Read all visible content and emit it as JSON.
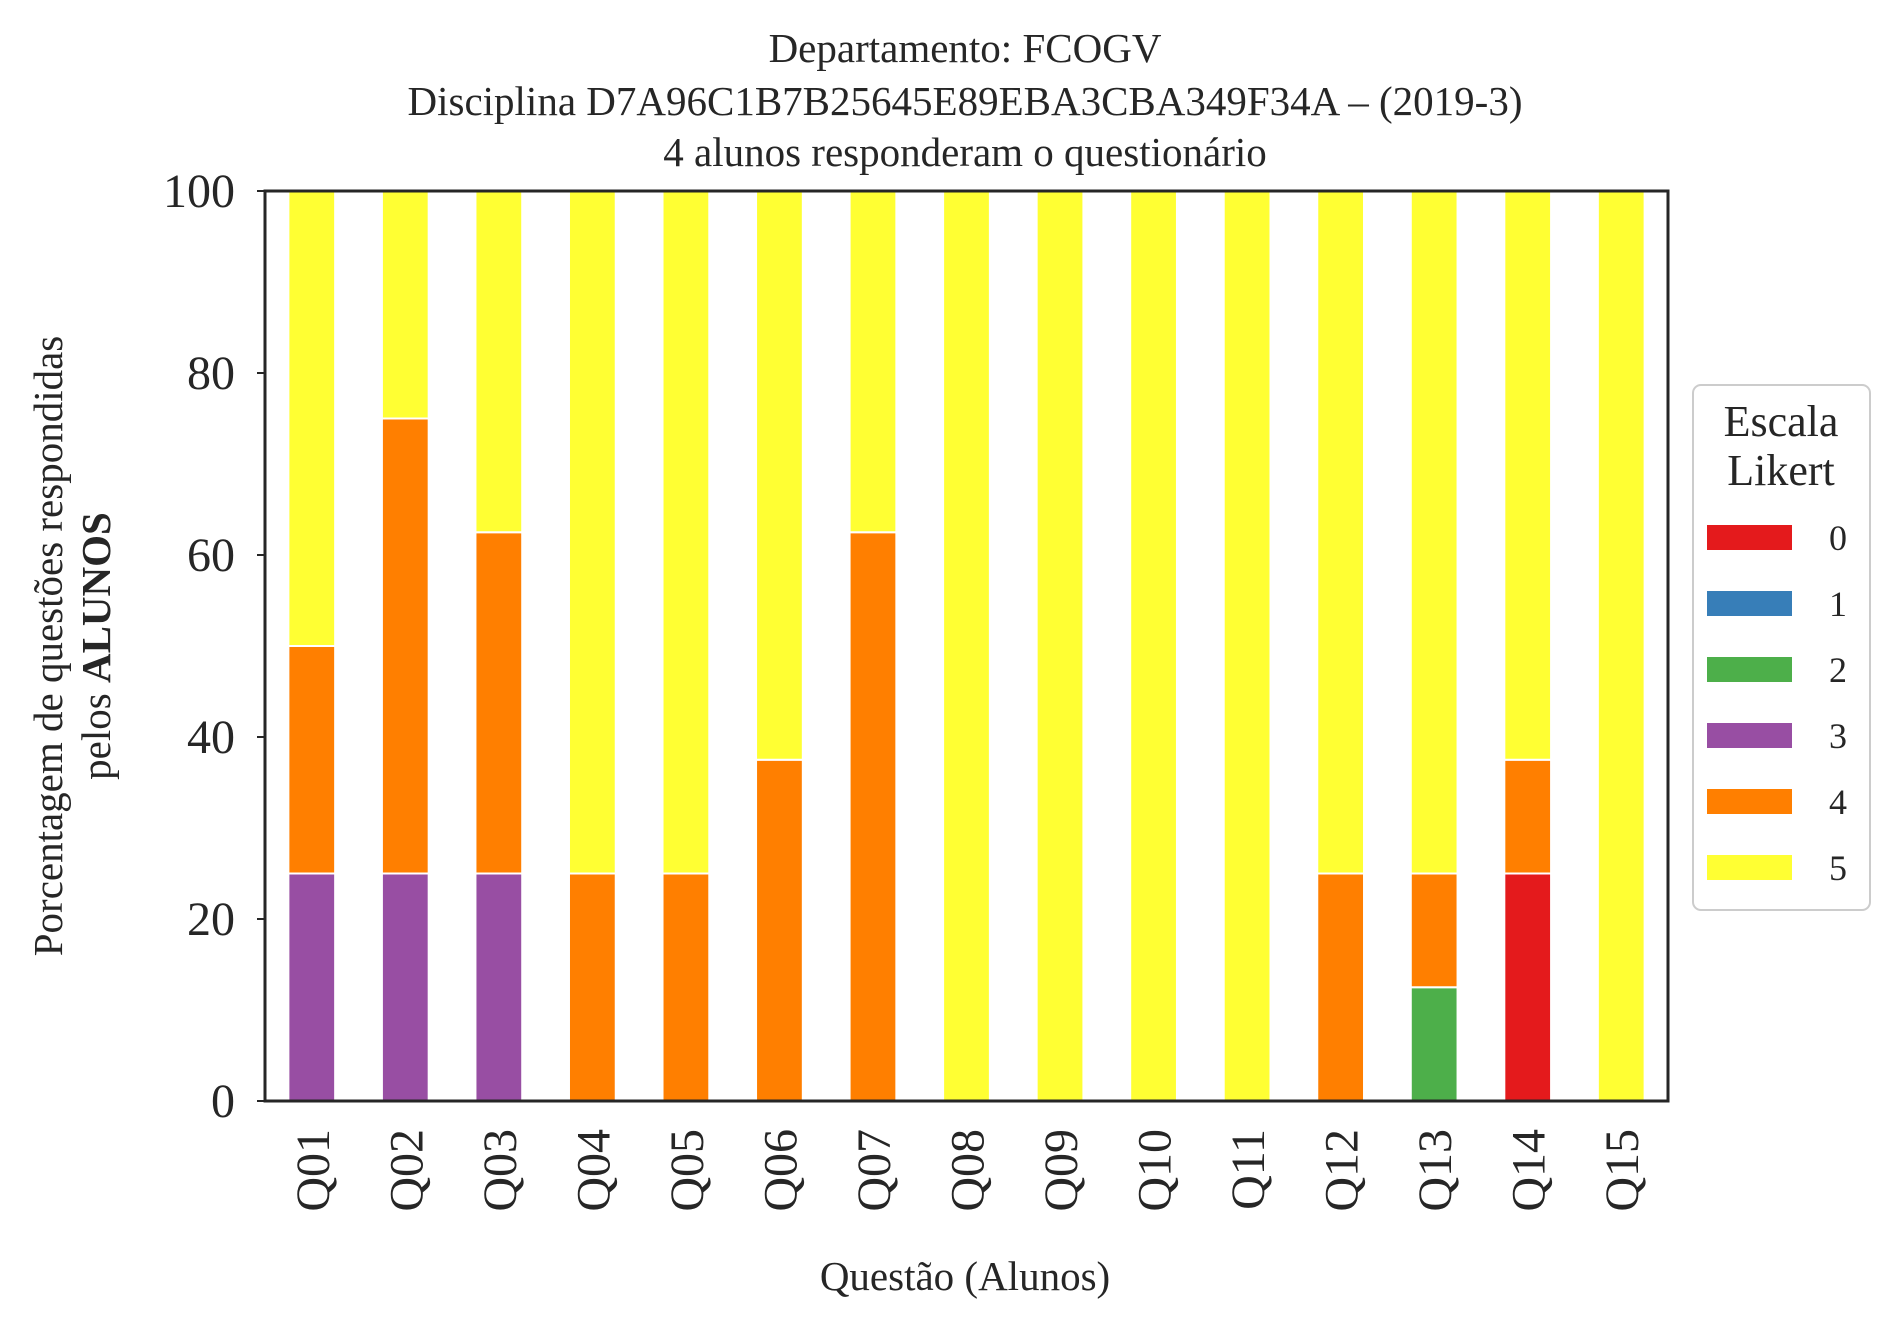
{
  "chart_data": {
    "type": "bar",
    "stacked": true,
    "title_lines": [
      "Departamento: FCOGV",
      "Disciplina D7A96C1B7B25645E89EBA3CBA349F34A – (2019-3)",
      "4 alunos responderam o questionário"
    ],
    "xlabel": "Questão (Alunos)",
    "ylabel_line1": "Porcentagem de questões respondidas",
    "ylabel_line2_prefix": "pelos ",
    "ylabel_line2_bold": "ALUNOS",
    "ylim": [
      0,
      100
    ],
    "yticks": [
      "0",
      "20",
      "40",
      "60",
      "80",
      "100"
    ],
    "categories": [
      "Q01",
      "Q02",
      "Q03",
      "Q04",
      "Q05",
      "Q06",
      "Q07",
      "Q08",
      "Q09",
      "Q10",
      "Q11",
      "Q12",
      "Q13",
      "Q14",
      "Q15"
    ],
    "series": [
      {
        "name": "0",
        "color": "#e41a1c",
        "values": [
          0,
          0,
          0,
          0,
          0,
          0,
          0,
          0,
          0,
          0,
          0,
          0,
          0,
          25,
          0
        ]
      },
      {
        "name": "1",
        "color": "#377eb8",
        "values": [
          0,
          0,
          0,
          0,
          0,
          0,
          0,
          0,
          0,
          0,
          0,
          0,
          0,
          0,
          0
        ]
      },
      {
        "name": "2",
        "color": "#4daf4a",
        "values": [
          0,
          0,
          0,
          0,
          0,
          0,
          0,
          0,
          0,
          0,
          0,
          0,
          12.5,
          0,
          0
        ]
      },
      {
        "name": "3",
        "color": "#984ea3",
        "values": [
          25,
          25,
          25,
          0,
          0,
          0,
          0,
          0,
          0,
          0,
          0,
          0,
          0,
          0,
          0
        ]
      },
      {
        "name": "4",
        "color": "#ff7f00",
        "values": [
          25,
          50,
          37.5,
          25,
          25,
          37.5,
          62.5,
          0,
          0,
          0,
          0,
          25,
          12.5,
          12.5,
          0
        ]
      },
      {
        "name": "5",
        "color": "#ffff33",
        "values": [
          50,
          25,
          37.5,
          75,
          75,
          62.5,
          37.5,
          100,
          100,
          100,
          100,
          75,
          75,
          62.5,
          100
        ]
      }
    ],
    "legend": {
      "title_lines": [
        "Escala",
        "Likert"
      ],
      "placement": "right"
    },
    "grid": false
  }
}
